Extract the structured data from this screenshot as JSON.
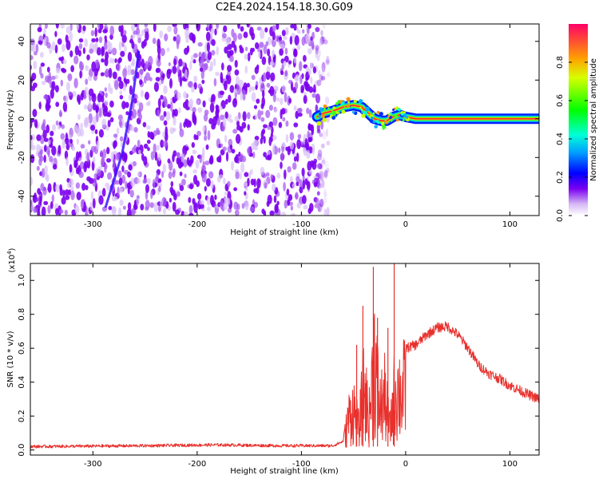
{
  "title": "C2E4.2024.154.18.30.G09",
  "chart_data": [
    {
      "type": "heatmap",
      "xlabel": "Height of straight line (km)",
      "ylabel": "Frequency (Hz)",
      "xlim": [
        -360,
        128
      ],
      "ylim": [
        -50,
        49
      ],
      "xticks": [
        -300,
        -200,
        -100,
        0,
        100
      ],
      "yticks": [
        -40,
        -20,
        0,
        20,
        40
      ],
      "noise_region_x": [
        -360,
        -77
      ],
      "streak": {
        "x": [
          -288,
          -272,
          -262,
          -256
        ],
        "y": [
          -46,
          -18,
          10,
          35
        ]
      },
      "signal_track": {
        "x": [
          -85,
          -78,
          -70,
          -60,
          -50,
          -42,
          -36,
          -30,
          -24,
          -18,
          -12,
          -6,
          0,
          10,
          128
        ],
        "y": [
          1,
          3,
          4,
          6,
          7,
          6,
          3,
          0,
          -1,
          -1,
          1,
          2,
          1,
          0,
          0
        ]
      },
      "colorbar": {
        "label": "Normalized spectral amplitude",
        "range": [
          0.0,
          1.0
        ],
        "ticks": [
          0.0,
          0.2,
          0.4,
          0.6,
          0.8
        ]
      }
    },
    {
      "type": "line",
      "xlabel": "Height of straight line (km)",
      "ylabel": "SNR (10 * v/v)",
      "y_exponent_label": "(x10",
      "y_exponent_power": "4",
      "y_exponent_close": ")",
      "xlim": [
        -360,
        128
      ],
      "ylim": [
        -0.03,
        1.1
      ],
      "xticks": [
        -300,
        -200,
        -100,
        0,
        100
      ],
      "yticks": [
        0.0,
        0.2,
        0.4,
        0.6,
        0.8,
        1.0
      ],
      "color": "#e8302c",
      "envelope": {
        "x": [
          -360,
          -250,
          -180,
          -120,
          -70,
          -60,
          -55,
          -50,
          -45,
          -40,
          -35,
          -30,
          -25,
          -20,
          -15,
          -10,
          -5,
          0,
          10,
          20,
          30,
          40,
          50,
          60,
          70,
          80,
          90,
          100,
          110,
          120,
          128
        ],
        "y": [
          0.02,
          0.025,
          0.03,
          0.025,
          0.025,
          0.05,
          0.3,
          0.4,
          0.2,
          0.6,
          0.3,
          0.9,
          0.4,
          0.5,
          0.2,
          0.6,
          0.55,
          0.6,
          0.62,
          0.68,
          0.72,
          0.73,
          0.68,
          0.6,
          0.5,
          0.45,
          0.42,
          0.38,
          0.35,
          0.32,
          0.3
        ]
      },
      "spikes": [
        {
          "x": -47,
          "y": 0.62
        },
        {
          "x": -41,
          "y": 0.85
        },
        {
          "x": -31,
          "y": 1.08
        },
        {
          "x": -27,
          "y": 0.78
        },
        {
          "x": -17,
          "y": 0.72
        },
        {
          "x": -11,
          "y": 1.1
        }
      ]
    }
  ]
}
